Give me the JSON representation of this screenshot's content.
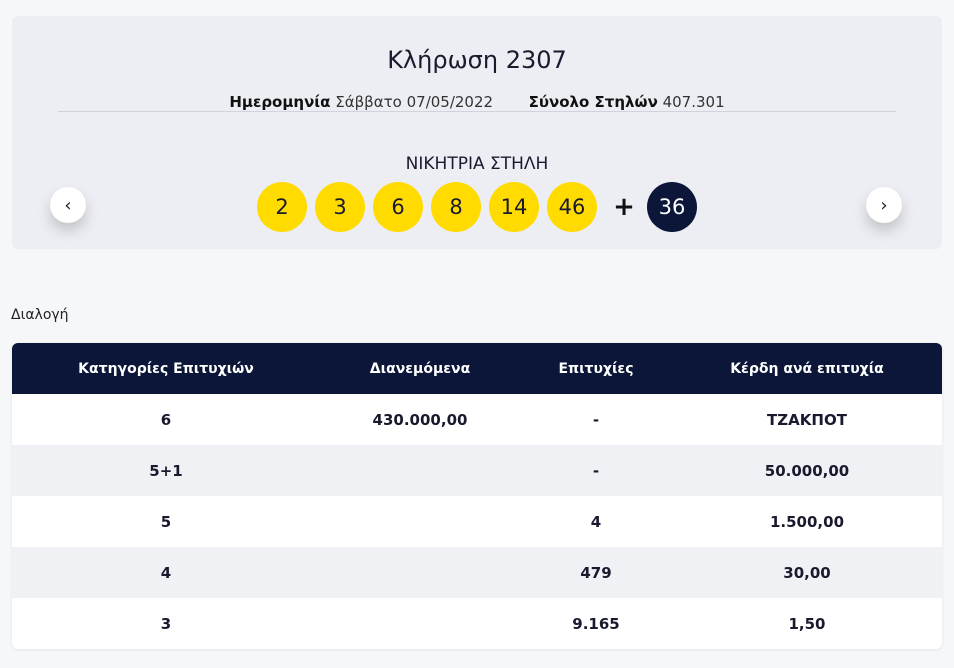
{
  "draw": {
    "title": "Κλήρωση 2307",
    "date_label": "Ημερομηνία",
    "date_value": "Σάββατο 07/05/2022",
    "total_label": "Σύνολο Στηλών",
    "total_value": "407.301",
    "winning_label": "ΝΙΚΗΤΡΙΑ ΣΤΗΛΗ",
    "numbers": [
      "2",
      "3",
      "6",
      "8",
      "14",
      "46"
    ],
    "plus": "+",
    "bonus": "36",
    "prev_icon": "‹",
    "next_icon": "›"
  },
  "sort_label": "Διαλογή",
  "table": {
    "headers": [
      "Κατηγορίες Επιτυχιών",
      "Διανεμόμενα",
      "Επιτυχίες",
      "Κέρδη ανά επιτυχία"
    ],
    "rows": [
      [
        "6",
        "430.000,00",
        "-",
        "ΤΖΑΚΠΟΤ"
      ],
      [
        "5+1",
        "",
        "-",
        "50.000,00"
      ],
      [
        "5",
        "",
        "4",
        "1.500,00"
      ],
      [
        "4",
        "",
        "479",
        "30,00"
      ],
      [
        "3",
        "",
        "9.165",
        "1,50"
      ]
    ]
  },
  "colors": {
    "ball": "#ffdb00",
    "bonus_ball": "#0b1638",
    "table_header": "#0b1638"
  }
}
